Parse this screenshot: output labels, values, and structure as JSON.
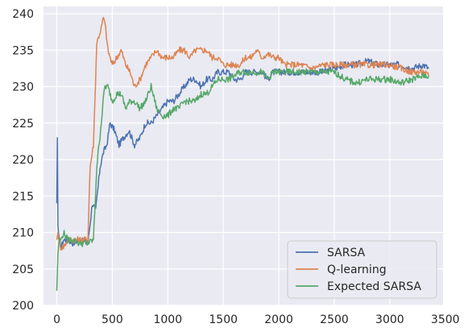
{
  "chart_data": {
    "type": "line",
    "title": "",
    "xlabel": "",
    "ylabel": "",
    "xlim": [
      -120,
      3480
    ],
    "ylim": [
      200,
      241
    ],
    "xticks": [
      0,
      500,
      1000,
      1500,
      2000,
      2500,
      3000,
      3500
    ],
    "yticks": [
      200,
      205,
      210,
      215,
      220,
      225,
      230,
      235,
      240
    ],
    "grid": true,
    "legend_position": "bottom-right",
    "background": "#eaeaf2",
    "series": [
      {
        "name": "SARSA",
        "color": "#4c72b0",
        "points": [
          [
            0,
            214
          ],
          [
            5,
            223
          ],
          [
            10,
            211
          ],
          [
            20,
            209
          ],
          [
            40,
            208
          ],
          [
            60,
            209
          ],
          [
            100,
            209
          ],
          [
            150,
            208.5
          ],
          [
            200,
            209
          ],
          [
            280,
            208.5
          ],
          [
            320,
            214
          ],
          [
            350,
            213
          ],
          [
            390,
            219
          ],
          [
            420,
            221
          ],
          [
            450,
            222
          ],
          [
            480,
            225
          ],
          [
            520,
            224
          ],
          [
            560,
            222
          ],
          [
            600,
            223
          ],
          [
            650,
            224
          ],
          [
            700,
            222
          ],
          [
            750,
            223
          ],
          [
            800,
            225
          ],
          [
            850,
            225
          ],
          [
            900,
            226
          ],
          [
            950,
            227
          ],
          [
            1000,
            228
          ],
          [
            1050,
            228
          ],
          [
            1100,
            229
          ],
          [
            1150,
            230
          ],
          [
            1200,
            231
          ],
          [
            1250,
            231
          ],
          [
            1300,
            230
          ],
          [
            1350,
            231
          ],
          [
            1400,
            231
          ],
          [
            1450,
            232
          ],
          [
            1500,
            232
          ],
          [
            1550,
            232
          ],
          [
            1600,
            231
          ],
          [
            1650,
            231
          ],
          [
            1700,
            232
          ],
          [
            1750,
            232
          ],
          [
            1800,
            232
          ],
          [
            1850,
            232
          ],
          [
            1900,
            231
          ],
          [
            1950,
            232
          ],
          [
            2000,
            232
          ],
          [
            2100,
            232
          ],
          [
            2200,
            232
          ],
          [
            2300,
            232
          ],
          [
            2400,
            232
          ],
          [
            2500,
            232.5
          ],
          [
            2600,
            233
          ],
          [
            2700,
            233
          ],
          [
            2800,
            233.5
          ],
          [
            2900,
            233
          ],
          [
            3000,
            233
          ],
          [
            3100,
            233
          ],
          [
            3200,
            232.5
          ],
          [
            3300,
            233
          ],
          [
            3350,
            232.5
          ]
        ]
      },
      {
        "name": "Q-learning",
        "color": "#dd8452",
        "points": [
          [
            0,
            209
          ],
          [
            10,
            210
          ],
          [
            30,
            208
          ],
          [
            60,
            208
          ],
          [
            100,
            209
          ],
          [
            200,
            209
          ],
          [
            280,
            209
          ],
          [
            300,
            219
          ],
          [
            330,
            222
          ],
          [
            360,
            236
          ],
          [
            380,
            237
          ],
          [
            400,
            238
          ],
          [
            420,
            239.5
          ],
          [
            440,
            238
          ],
          [
            460,
            235
          ],
          [
            500,
            233
          ],
          [
            540,
            234
          ],
          [
            580,
            235
          ],
          [
            620,
            233
          ],
          [
            660,
            232
          ],
          [
            700,
            230
          ],
          [
            750,
            231
          ],
          [
            800,
            233
          ],
          [
            850,
            234
          ],
          [
            900,
            235
          ],
          [
            950,
            234
          ],
          [
            1000,
            234
          ],
          [
            1050,
            234
          ],
          [
            1100,
            235
          ],
          [
            1150,
            235
          ],
          [
            1200,
            234
          ],
          [
            1250,
            235
          ],
          [
            1300,
            235
          ],
          [
            1350,
            235
          ],
          [
            1400,
            234
          ],
          [
            1450,
            234
          ],
          [
            1500,
            233
          ],
          [
            1550,
            233
          ],
          [
            1600,
            233
          ],
          [
            1650,
            233
          ],
          [
            1700,
            234
          ],
          [
            1750,
            234
          ],
          [
            1800,
            235
          ],
          [
            1850,
            234
          ],
          [
            1900,
            234.5
          ],
          [
            1950,
            234
          ],
          [
            2000,
            234
          ],
          [
            2050,
            233
          ],
          [
            2100,
            233
          ],
          [
            2200,
            233
          ],
          [
            2300,
            232.5
          ],
          [
            2400,
            233
          ],
          [
            2500,
            233
          ],
          [
            2600,
            233
          ],
          [
            2700,
            233
          ],
          [
            2800,
            233
          ],
          [
            2900,
            233
          ],
          [
            3000,
            233
          ],
          [
            3100,
            232.5
          ],
          [
            3200,
            232
          ],
          [
            3300,
            232
          ],
          [
            3350,
            231.5
          ]
        ]
      },
      {
        "name": "Expected SARSA",
        "color": "#55a868",
        "points": [
          [
            0,
            202
          ],
          [
            10,
            207
          ],
          [
            20,
            209
          ],
          [
            40,
            209
          ],
          [
            60,
            210
          ],
          [
            100,
            209
          ],
          [
            150,
            209
          ],
          [
            200,
            208.5
          ],
          [
            280,
            208.5
          ],
          [
            330,
            209
          ],
          [
            360,
            219
          ],
          [
            400,
            225
          ],
          [
            430,
            230
          ],
          [
            460,
            230
          ],
          [
            500,
            228
          ],
          [
            540,
            229
          ],
          [
            580,
            229
          ],
          [
            620,
            227
          ],
          [
            660,
            228
          ],
          [
            700,
            228
          ],
          [
            750,
            227
          ],
          [
            800,
            228
          ],
          [
            850,
            230
          ],
          [
            900,
            227
          ],
          [
            950,
            226
          ],
          [
            1000,
            226
          ],
          [
            1050,
            227
          ],
          [
            1100,
            227
          ],
          [
            1150,
            228
          ],
          [
            1200,
            228
          ],
          [
            1250,
            228
          ],
          [
            1300,
            229
          ],
          [
            1350,
            229
          ],
          [
            1400,
            230
          ],
          [
            1450,
            231
          ],
          [
            1500,
            231
          ],
          [
            1550,
            231
          ],
          [
            1600,
            231.5
          ],
          [
            1650,
            232
          ],
          [
            1700,
            232
          ],
          [
            1750,
            232
          ],
          [
            1800,
            232
          ],
          [
            1850,
            232
          ],
          [
            1900,
            231
          ],
          [
            1950,
            232
          ],
          [
            2000,
            232
          ],
          [
            2100,
            232
          ],
          [
            2200,
            232
          ],
          [
            2300,
            232
          ],
          [
            2400,
            232
          ],
          [
            2500,
            232
          ],
          [
            2600,
            231
          ],
          [
            2700,
            230.5
          ],
          [
            2800,
            231
          ],
          [
            2900,
            231
          ],
          [
            3000,
            231
          ],
          [
            3100,
            230.5
          ],
          [
            3200,
            231
          ],
          [
            3300,
            231.5
          ],
          [
            3350,
            231.5
          ]
        ]
      }
    ]
  }
}
